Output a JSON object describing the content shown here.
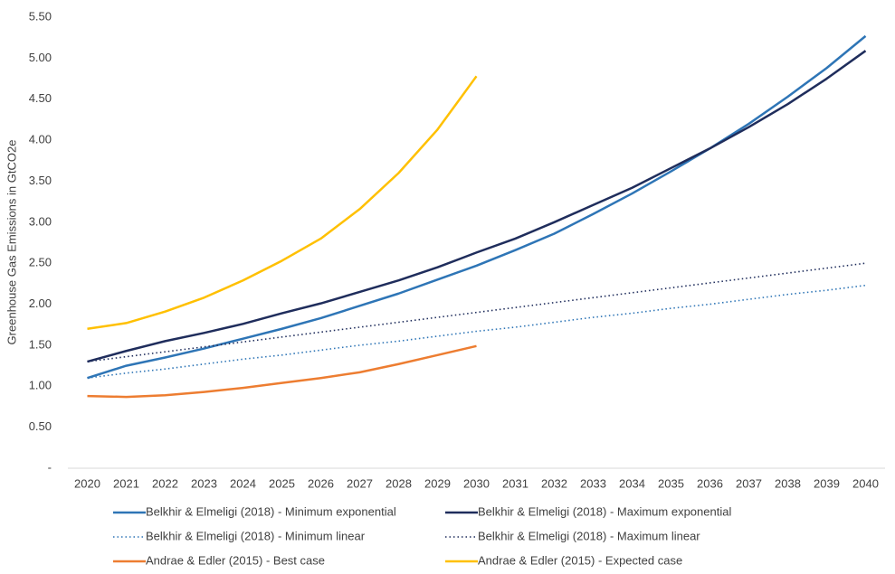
{
  "chart_data": {
    "type": "line",
    "y_label": "Greenhouse Gas Emissions in GtCO2e",
    "categories": [
      "2020",
      "2021",
      "2022",
      "2023",
      "2024",
      "2025",
      "2026",
      "2027",
      "2028",
      "2029",
      "2030",
      "2031",
      "2032",
      "2033",
      "2034",
      "2035",
      "2036",
      "2037",
      "2038",
      "2039",
      "2040"
    ],
    "ylim": [
      0,
      5.5
    ],
    "yticks": [
      {
        "value": 0,
        "label": "-"
      },
      {
        "value": 0.5,
        "label": "0.50"
      },
      {
        "value": 1,
        "label": "1.00"
      },
      {
        "value": 1.5,
        "label": "1.50"
      },
      {
        "value": 2,
        "label": "2.00"
      },
      {
        "value": 2.5,
        "label": "2.50"
      },
      {
        "value": 3,
        "label": "3.00"
      },
      {
        "value": 3.5,
        "label": "3.50"
      },
      {
        "value": 4,
        "label": "4.00"
      },
      {
        "value": 4.5,
        "label": "4.50"
      },
      {
        "value": 5,
        "label": "5.00"
      },
      {
        "value": 5.5,
        "label": "5.50"
      }
    ],
    "grid": false,
    "legend": "bottom",
    "series": [
      {
        "name": "Belkhir & Elmeligi (2018) - Minimum exponential",
        "color": "#2e75b6",
        "line_style": "solid",
        "values": [
          1.1,
          1.25,
          1.35,
          1.46,
          1.58,
          1.7,
          1.83,
          1.98,
          2.13,
          2.3,
          2.47,
          2.66,
          2.86,
          3.1,
          3.35,
          3.62,
          3.9,
          4.2,
          4.53,
          4.88,
          5.27
        ]
      },
      {
        "name": "Belkhir & Elmeligi (2018) - Maximum exponential",
        "color": "#1f2d5c",
        "line_style": "solid",
        "values": [
          1.3,
          1.43,
          1.55,
          1.65,
          1.76,
          1.89,
          2.01,
          2.15,
          2.29,
          2.45,
          2.63,
          2.8,
          3.0,
          3.21,
          3.42,
          3.66,
          3.9,
          4.16,
          4.44,
          4.75,
          5.09
        ]
      },
      {
        "name": "Belkhir & Elmeligi (2018) - Minimum linear",
        "color": "#2e75b6",
        "line_style": "dotted",
        "values": [
          1.1,
          1.16,
          1.21,
          1.27,
          1.33,
          1.38,
          1.44,
          1.5,
          1.55,
          1.61,
          1.67,
          1.72,
          1.78,
          1.84,
          1.89,
          1.95,
          2.0,
          2.06,
          2.12,
          2.17,
          2.23
        ]
      },
      {
        "name": "Belkhir & Elmeligi (2018) - Maximum linear",
        "color": "#1f2d5c",
        "line_style": "dotted",
        "values": [
          1.3,
          1.36,
          1.42,
          1.48,
          1.54,
          1.6,
          1.66,
          1.72,
          1.78,
          1.84,
          1.9,
          1.96,
          2.02,
          2.08,
          2.14,
          2.2,
          2.26,
          2.32,
          2.38,
          2.44,
          2.5
        ]
      },
      {
        "name": "Andrae & Edler (2015) - Best case",
        "color": "#ed7d31",
        "line_style": "solid",
        "values": [
          0.88,
          0.87,
          0.89,
          0.93,
          0.98,
          1.04,
          1.1,
          1.17,
          1.27,
          1.38,
          1.49,
          null,
          null,
          null,
          null,
          null,
          null,
          null,
          null,
          null,
          null
        ]
      },
      {
        "name": "Andrae & Edler (2015) - Expected case",
        "color": "#ffc000",
        "line_style": "solid",
        "values": [
          1.7,
          1.77,
          1.91,
          2.08,
          2.29,
          2.53,
          2.8,
          3.16,
          3.6,
          4.13,
          4.78,
          null,
          null,
          null,
          null,
          null,
          null,
          null,
          null,
          null,
          null
        ]
      }
    ]
  }
}
